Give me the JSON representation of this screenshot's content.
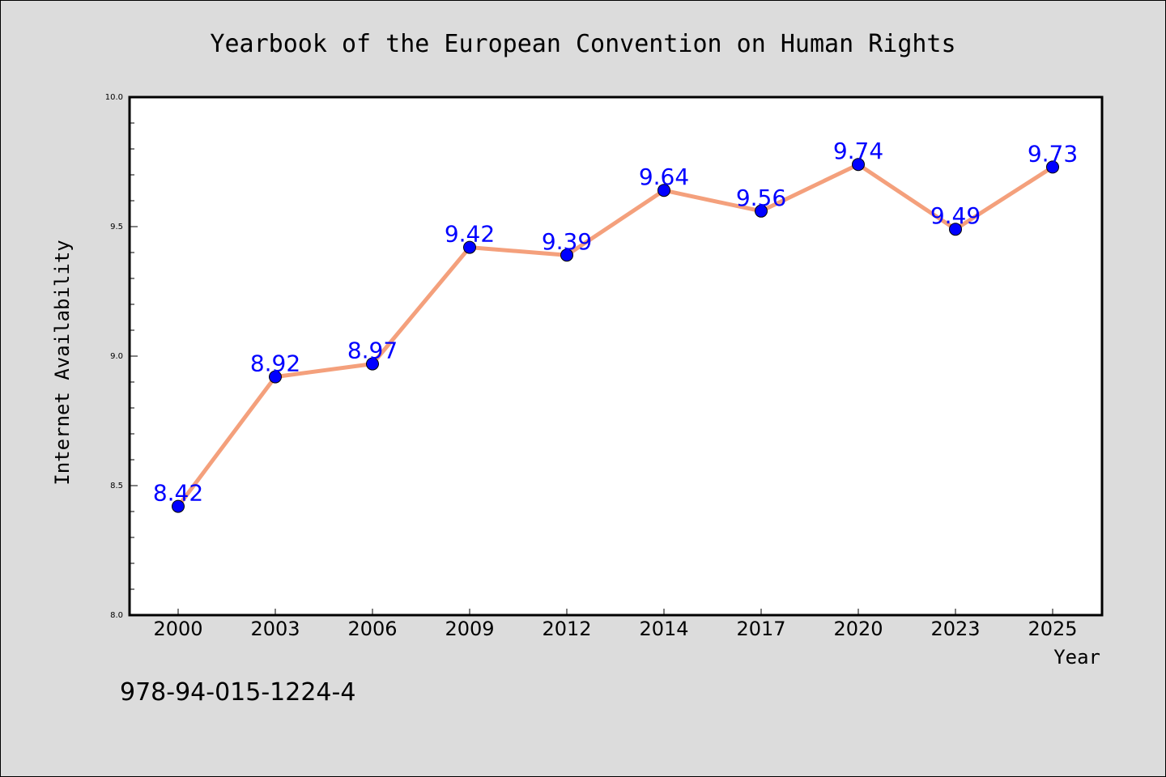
{
  "chart_data": {
    "type": "line",
    "title": "Yearbook of the European Convention on Human Rights",
    "xlabel": "Year",
    "ylabel": "Internet Availability",
    "categories": [
      "2000",
      "2003",
      "2006",
      "2009",
      "2012",
      "2014",
      "2017",
      "2020",
      "2023",
      "2025"
    ],
    "values": [
      8.42,
      8.92,
      8.97,
      9.42,
      9.39,
      9.64,
      9.56,
      9.74,
      9.49,
      9.73
    ],
    "data_labels": [
      "8.42",
      "8.92",
      "8.97",
      "9.42",
      "9.39",
      "9.64",
      "9.56",
      "9.74",
      "9.49",
      "9.73"
    ],
    "ylim": [
      8.0,
      10.0
    ],
    "yticks": [
      "8.0",
      "8.5",
      "9.0",
      "9.5",
      "10.0"
    ],
    "grid": false,
    "colors": {
      "line": "#f4a07c",
      "marker": "#0000ff",
      "label": "#0000ff",
      "background": "#dcdcdc",
      "plot_background": "#ffffff"
    }
  },
  "footer": {
    "isbn": "978-94-015-1224-4"
  }
}
